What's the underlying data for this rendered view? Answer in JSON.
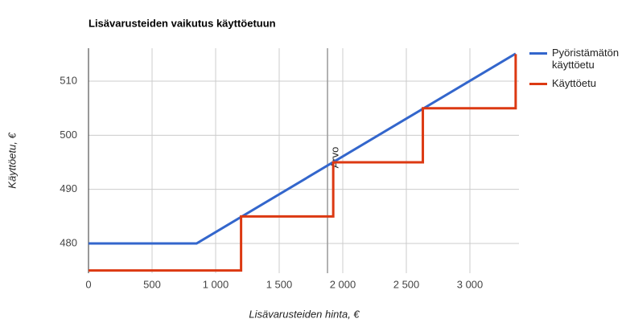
{
  "chart_data": {
    "type": "line",
    "title": "Lisävarusteiden vaikutus käyttöetuun",
    "x_label": "Lisävarusteiden hinta, €",
    "y_label": "Käyttöetu, €",
    "series": [
      {
        "name": "Pyöristämätön käyttöetu",
        "color": "#3366cc",
        "x": [
          0,
          850,
          3360
        ],
        "values": [
          480,
          480,
          515.1
        ]
      },
      {
        "name": "Käyttöetu",
        "color": "#dc3912",
        "x": [
          0,
          1200,
          1200,
          1925,
          1925,
          2630,
          2630,
          3360,
          3360
        ],
        "values": [
          475,
          475,
          485,
          485,
          495,
          495,
          505,
          505,
          515
        ]
      }
    ],
    "xlim": [
      0,
      3386
    ],
    "ylim": [
      474.5,
      516.1
    ],
    "xticks": [
      0,
      500,
      {
        "value": 1000,
        "label": "1 000"
      },
      {
        "value": 1500,
        "label": "1 500"
      },
      {
        "value": 2000,
        "label": "2 000"
      },
      {
        "value": 2500,
        "label": "2 500"
      },
      {
        "value": 3000,
        "label": "3 000"
      }
    ],
    "yticks": [
      480,
      490,
      500,
      510
    ],
    "annotations": [
      {
        "label": "Arvo",
        "x": 1880
      }
    ],
    "grid": true,
    "legend": "right"
  }
}
